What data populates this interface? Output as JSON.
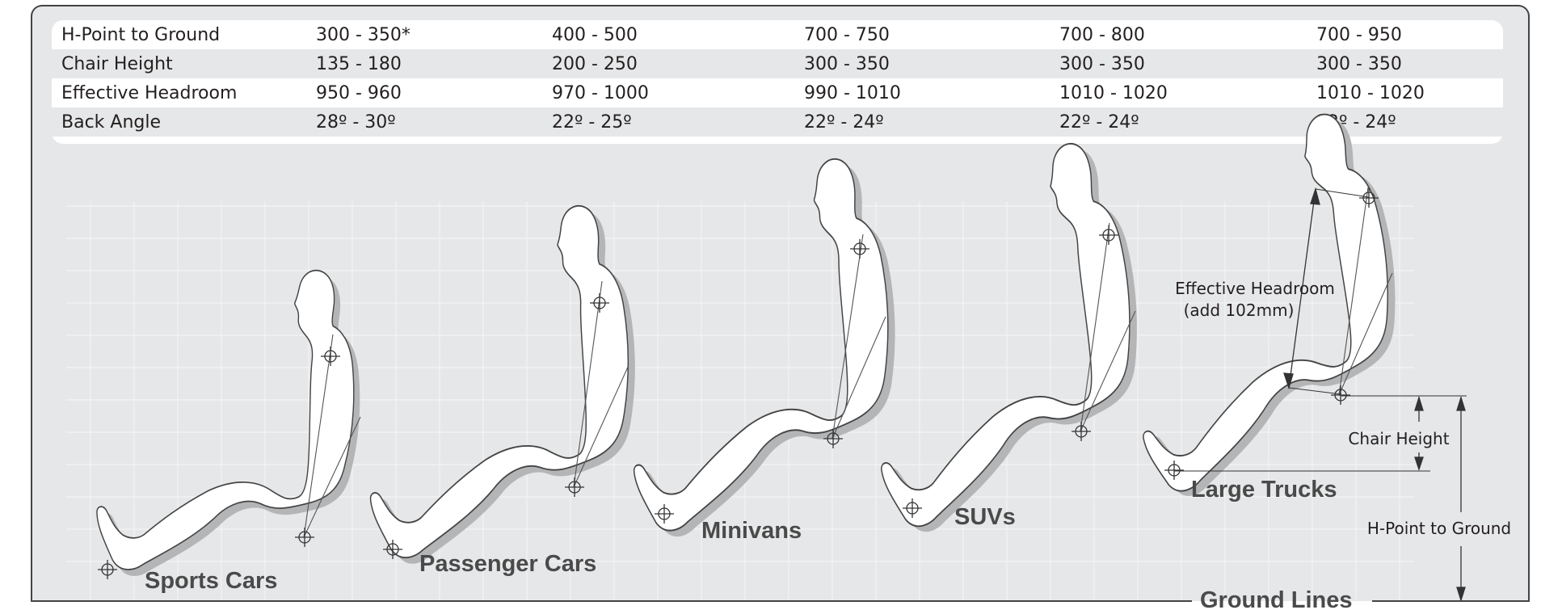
{
  "table": {
    "rows": [
      {
        "label": "H-Point to Ground",
        "values": [
          "300 - 350*",
          "400 - 500",
          "700 - 750",
          "700 - 800",
          "700 - 950"
        ]
      },
      {
        "label": "Chair Height",
        "values": [
          "135 - 180",
          "200 - 250",
          "300 - 350",
          "300 - 350",
          "300 - 350"
        ]
      },
      {
        "label": "Effective Headroom",
        "values": [
          "950 - 960",
          "970 - 1000",
          "990 - 1010",
          "1010 - 1020",
          "1010 - 1020"
        ]
      },
      {
        "label": "Back Angle",
        "values": [
          "28º - 30º",
          "22º - 25º",
          "22º - 24º",
          "22º - 24º",
          "22º - 24º"
        ]
      }
    ]
  },
  "vehicles": [
    {
      "label": "Sports Cars"
    },
    {
      "label": "Passenger Cars"
    },
    {
      "label": "Minivans"
    },
    {
      "label": "SUVs"
    },
    {
      "label": "Large Trucks"
    }
  ],
  "annotations": {
    "headroom_line1": "Effective Headroom",
    "headroom_line2": "(add 102mm)",
    "chair_height": "Chair Height",
    "h_point": "H-Point to Ground",
    "ground_lines": "Ground Lines"
  }
}
